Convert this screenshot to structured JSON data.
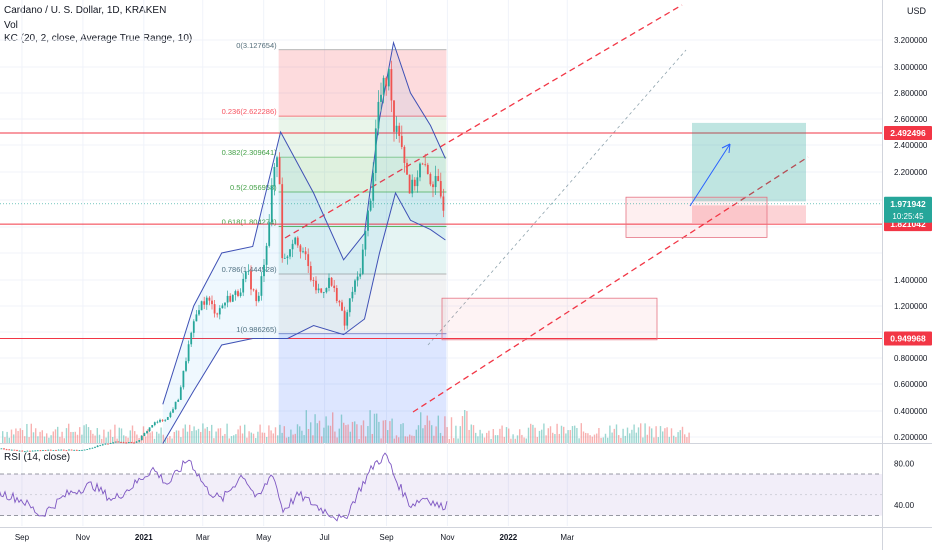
{
  "header": {
    "symbol_line": "Cardano / U. S. Dollar, 1D, KRAKEN",
    "volume_label": "Vol",
    "indicator_label": "KC (20, 2, close, Average True Range, 10)",
    "currency": "USD"
  },
  "rsi": {
    "label": "RSI (14, close)",
    "ticks": [
      "80.00",
      "40.00"
    ]
  },
  "colors": {
    "price_badge": "#26a69a",
    "resistance_red": "#f23645",
    "fib_red": "#f7525f",
    "fib_green": "#4caf50",
    "keltner": "#3f51b5",
    "rsi_line": "#7e57c2",
    "projection": "#2962ff"
  },
  "chart_data": {
    "type": "candlestick",
    "title": "Cardano / U. S. Dollar, 1D, KRAKEN",
    "x_ticks": [
      "Sep",
      "Nov",
      "2021",
      "Mar",
      "May",
      "Jul",
      "Sep",
      "Nov",
      "2022",
      "Mar"
    ],
    "y_ticks": [
      "3.200000",
      "3.000000",
      "2.800000",
      "2.600000",
      "2.400000",
      "2.200000",
      "1.400000",
      "1.200000",
      "0.800000",
      "0.600000",
      "0.400000",
      "0.200000"
    ],
    "ylim": [
      0.15,
      3.35
    ],
    "price_path": [
      [
        "2020-08-01",
        0.12
      ],
      [
        "2020-09-01",
        0.09
      ],
      [
        "2020-10-01",
        0.1
      ],
      [
        "2020-11-01",
        0.1
      ],
      [
        "2020-12-01",
        0.16
      ],
      [
        "2020-12-25",
        0.16
      ],
      [
        "2021-01-10",
        0.3
      ],
      [
        "2021-01-25",
        0.35
      ],
      [
        "2021-02-05",
        0.5
      ],
      [
        "2021-02-15",
        0.9
      ],
      [
        "2021-02-25",
        1.2
      ],
      [
        "2021-03-05",
        1.25
      ],
      [
        "2021-03-15",
        1.15
      ],
      [
        "2021-03-25",
        1.25
      ],
      [
        "2021-04-05",
        1.3
      ],
      [
        "2021-04-15",
        1.45
      ],
      [
        "2021-04-25",
        1.2
      ],
      [
        "2021-05-05",
        1.75
      ],
      [
        "2021-05-12",
        2.25
      ],
      [
        "2021-05-16",
        2.35
      ],
      [
        "2021-05-20",
        1.5
      ],
      [
        "2021-05-25",
        1.6
      ],
      [
        "2021-06-01",
        1.75
      ],
      [
        "2021-06-10",
        1.6
      ],
      [
        "2021-06-20",
        1.35
      ],
      [
        "2021-06-28",
        1.3
      ],
      [
        "2021-07-05",
        1.4
      ],
      [
        "2021-07-15",
        1.25
      ],
      [
        "2021-07-21",
        1.05
      ],
      [
        "2021-07-28",
        1.3
      ],
      [
        "2021-08-05",
        1.45
      ],
      [
        "2021-08-10",
        1.7
      ],
      [
        "2021-08-18",
        2.15
      ],
      [
        "2021-08-23",
        2.7
      ],
      [
        "2021-09-01",
        2.9
      ],
      [
        "2021-09-05",
        2.95
      ],
      [
        "2021-09-08",
        2.5
      ],
      [
        "2021-09-12",
        2.6
      ],
      [
        "2021-09-20",
        2.25
      ],
      [
        "2021-09-25",
        2.05
      ],
      [
        "2021-10-05",
        2.25
      ],
      [
        "2021-10-15",
        2.15
      ],
      [
        "2021-10-22",
        2.1
      ],
      [
        "2021-10-28",
        1.97
      ]
    ],
    "keltner_upper": [
      [
        "2021-01-20",
        0.45
      ],
      [
        "2021-02-20",
        1.2
      ],
      [
        "2021-03-20",
        1.6
      ],
      [
        "2021-04-20",
        1.65
      ],
      [
        "2021-05-18",
        2.5
      ],
      [
        "2021-06-20",
        2.05
      ],
      [
        "2021-07-20",
        1.55
      ],
      [
        "2021-08-10",
        1.75
      ],
      [
        "2021-08-25",
        2.6
      ],
      [
        "2021-09-08",
        3.18
      ],
      [
        "2021-09-25",
        2.8
      ],
      [
        "2021-10-15",
        2.55
      ],
      [
        "2021-10-30",
        2.3
      ]
    ],
    "keltner_lower": [
      [
        "2021-01-20",
        0.15
      ],
      [
        "2021-02-20",
        0.55
      ],
      [
        "2021-03-20",
        0.9
      ],
      [
        "2021-04-20",
        0.95
      ],
      [
        "2021-05-25",
        0.95
      ],
      [
        "2021-06-20",
        1.05
      ],
      [
        "2021-07-20",
        0.98
      ],
      [
        "2021-08-10",
        1.1
      ],
      [
        "2021-08-25",
        1.6
      ],
      [
        "2021-09-10",
        2.05
      ],
      [
        "2021-09-25",
        1.85
      ],
      [
        "2021-10-15",
        1.78
      ],
      [
        "2021-10-30",
        1.7
      ]
    ],
    "horizontal_levels": [
      {
        "value": 2.492496,
        "label": "2.492496"
      },
      {
        "value": 1.821042,
        "label": "1.821042"
      },
      {
        "value": 0.949968,
        "label": "0.949968"
      }
    ],
    "last_price": {
      "value": 1.971942,
      "label": "1.971942",
      "countdown": "10:25:45"
    },
    "fib_levels": [
      {
        "ratio": "0",
        "value": 3.127654,
        "label": "0(3.127654)"
      },
      {
        "ratio": "0.236",
        "value": 2.622286,
        "label": "0.236(2.622286)"
      },
      {
        "ratio": "0.382",
        "value": 2.309641,
        "label": "0.382(2.309641)"
      },
      {
        "ratio": "0.5",
        "value": 2.056958,
        "label": "0.5(2.056958)"
      },
      {
        "ratio": "0.618",
        "value": 1.804274,
        "label": "0.618(1.804274)"
      },
      {
        "ratio": "0.786",
        "value": 1.444528,
        "label": "0.786(1.444528)"
      },
      {
        "ratio": "1",
        "value": 0.986265,
        "label": "1(0.986265)"
      }
    ],
    "rsi_range": [
      20,
      95
    ],
    "rsi_levels": [
      70,
      30
    ],
    "rsi_path": [
      [
        "2020-08-01",
        55
      ],
      [
        "2020-09-01",
        45
      ],
      [
        "2020-09-20",
        30
      ],
      [
        "2020-10-15",
        50
      ],
      [
        "2020-11-10",
        60
      ],
      [
        "2020-12-01",
        45
      ],
      [
        "2020-12-20",
        58
      ],
      [
        "2021-01-10",
        75
      ],
      [
        "2021-01-25",
        60
      ],
      [
        "2021-02-15",
        85
      ],
      [
        "2021-03-05",
        55
      ],
      [
        "2021-03-20",
        45
      ],
      [
        "2021-04-10",
        70
      ],
      [
        "2021-04-25",
        45
      ],
      [
        "2021-05-10",
        72
      ],
      [
        "2021-05-20",
        35
      ],
      [
        "2021-06-05",
        50
      ],
      [
        "2021-06-25",
        38
      ],
      [
        "2021-07-20",
        25
      ],
      [
        "2021-08-05",
        55
      ],
      [
        "2021-08-20",
        80
      ],
      [
        "2021-09-01",
        88
      ],
      [
        "2021-09-10",
        65
      ],
      [
        "2021-09-25",
        40
      ],
      [
        "2021-10-10",
        48
      ],
      [
        "2021-10-25",
        38
      ],
      [
        "2021-11-01",
        42
      ]
    ],
    "grid": true,
    "legend": "top-left"
  }
}
